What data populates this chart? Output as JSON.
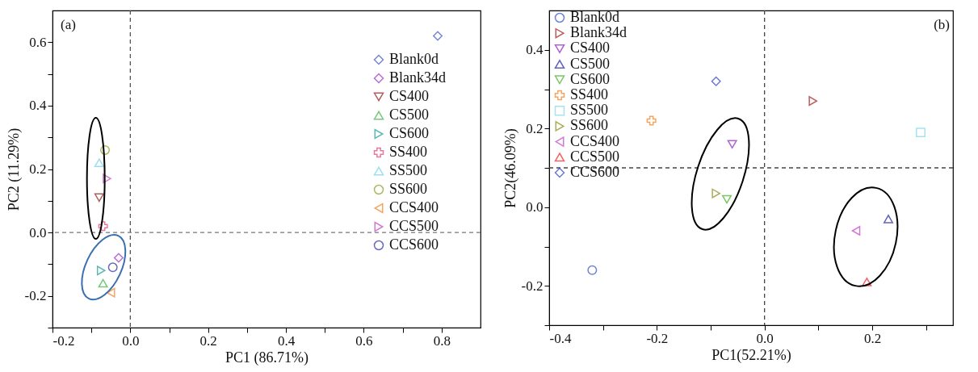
{
  "chart_data": [
    {
      "type": "scatter",
      "xlabel": "PC1 (86.71%)",
      "ylabel": "PC2 (11.29%)",
      "annotations": [
        "(a)"
      ],
      "xlim": [
        -0.2,
        0.9
      ],
      "ylim": [
        -0.3,
        0.7
      ],
      "xticks": [
        -0.2,
        {
          "value": -0.1,
          "label": null
        },
        {
          "value": 0,
          "label": "0.0"
        },
        {
          "value": 0.1,
          "label": null
        },
        0.2,
        {
          "value": 0.3,
          "label": null
        },
        0.4,
        {
          "value": 0.5,
          "label": null
        },
        0.6,
        {
          "value": 0.7,
          "label": null
        },
        0.8
      ],
      "yticks": [
        {
          "value": -0.3,
          "label": null
        },
        -0.2,
        {
          "value": -0.1,
          "label": null
        },
        {
          "value": 0,
          "label": "0.0"
        },
        {
          "value": 0.1,
          "label": null
        },
        0.2,
        {
          "value": 0.3,
          "label": null
        },
        0.4,
        {
          "value": 0.5,
          "label": null
        },
        0.6
      ],
      "grid": false,
      "legend": "top right",
      "ref_lines": [
        {
          "axis": "x",
          "value": 0,
          "color": "#555555",
          "line_style": "dashed"
        },
        {
          "axis": "y",
          "value": 0,
          "color": "#777777",
          "line_style": "dashed"
        }
      ],
      "series": [
        {
          "name": "Blank0d",
          "color": "#3f51c0",
          "marker": "diamond",
          "x": [
            0.79
          ],
          "values": [
            0.62
          ]
        },
        {
          "name": "Blank34d",
          "color": "#9b30c0",
          "marker": "diamond",
          "x": [
            -0.03
          ],
          "values": [
            -0.08
          ]
        },
        {
          "name": "CS400",
          "color": "#8b1a1a",
          "marker": "triangle-down",
          "x": [
            -0.08
          ],
          "values": [
            0.11
          ]
        },
        {
          "name": "CS500",
          "color": "#3cb043",
          "marker": "triangle-up",
          "x": [
            -0.07
          ],
          "values": [
            -0.16
          ]
        },
        {
          "name": "CS600",
          "color": "#1a9a9a",
          "marker": "triangle-right",
          "x": [
            -0.075
          ],
          "values": [
            -0.12
          ]
        },
        {
          "name": "SS400",
          "color": "#e0407a",
          "marker": "cross",
          "x": [
            -0.07
          ],
          "values": [
            0.02
          ]
        },
        {
          "name": "SS500",
          "color": "#70d0f0",
          "marker": "triangle-up",
          "x": [
            -0.08
          ],
          "values": [
            0.22
          ]
        },
        {
          "name": "SS600",
          "color": "#8a9a20",
          "marker": "circle",
          "x": [
            -0.065
          ],
          "values": [
            0.26
          ]
        },
        {
          "name": "CCS400",
          "color": "#f08020",
          "marker": "triangle-left",
          "x": [
            -0.05
          ],
          "values": [
            -0.19
          ]
        },
        {
          "name": "CCS500",
          "color": "#c040c0",
          "marker": "triangle-right",
          "x": [
            -0.06
          ],
          "values": [
            0.17
          ]
        },
        {
          "name": "CCS600",
          "color": "#2a2aa0",
          "marker": "circle",
          "x": [
            -0.045
          ],
          "values": [
            -0.11
          ]
        }
      ]
    },
    {
      "type": "scatter",
      "xlabel": "PC1(52.21%)",
      "ylabel": "PC2(46.09%)",
      "annotations": [
        "(b)"
      ],
      "xlim": [
        -0.4,
        0.35
      ],
      "ylim": [
        -0.3,
        0.5
      ],
      "xticks": [
        -0.4,
        {
          "value": -0.3,
          "label": null
        },
        -0.2,
        {
          "value": -0.1,
          "label": null
        },
        {
          "value": 0,
          "label": "0.0"
        },
        {
          "value": 0.1,
          "label": null
        },
        0.2,
        {
          "value": 0.3,
          "label": null
        }
      ],
      "yticks": [
        {
          "value": -0.3,
          "label": null
        },
        -0.2,
        {
          "value": -0.1,
          "label": null
        },
        {
          "value": 0,
          "label": "0.0"
        },
        {
          "value": 0.1,
          "label": null
        },
        0.2,
        {
          "value": 0.3,
          "label": null
        },
        0.4
      ],
      "grid": false,
      "legend": "top left",
      "ref_lines": [
        {
          "axis": "x",
          "value": 0,
          "color": "#444444",
          "line_style": "dashed"
        },
        {
          "axis": "y",
          "value": 0.1,
          "color": "#444444",
          "line_style": "dashed"
        }
      ],
      "series": [
        {
          "name": "Blank0d",
          "color": "#3050c0",
          "marker": "circle",
          "x": [
            -0.32
          ],
          "values": [
            -0.16
          ]
        },
        {
          "name": "Blank34d",
          "color": "#a01818",
          "marker": "triangle-right",
          "x": [
            0.09
          ],
          "values": [
            0.27
          ]
        },
        {
          "name": "CS400",
          "color": "#9020c0",
          "marker": "triangle-down",
          "x": [
            -0.06
          ],
          "values": [
            0.16
          ]
        },
        {
          "name": "CS500",
          "color": "#2020a0",
          "marker": "triangle-up",
          "x": [
            0.23
          ],
          "values": [
            -0.03
          ]
        },
        {
          "name": "CS600",
          "color": "#40b020",
          "marker": "triangle-down",
          "x": [
            -0.07
          ],
          "values": [
            0.02
          ]
        },
        {
          "name": "SS400",
          "color": "#f08020",
          "marker": "cross",
          "x": [
            -0.21
          ],
          "values": [
            0.22
          ]
        },
        {
          "name": "SS500",
          "color": "#80d8e8",
          "marker": "square",
          "x": [
            0.29
          ],
          "values": [
            0.19
          ]
        },
        {
          "name": "SS600",
          "color": "#8a8a10",
          "marker": "triangle-right",
          "x": [
            -0.09
          ],
          "values": [
            0.035
          ]
        },
        {
          "name": "CCS400",
          "color": "#c040c0",
          "marker": "triangle-left",
          "x": [
            0.17
          ],
          "values": [
            -0.06
          ]
        },
        {
          "name": "CCS500",
          "color": "#f02020",
          "marker": "triangle-up",
          "x": [
            0.19
          ],
          "values": [
            -0.19
          ]
        },
        {
          "name": "CCS600",
          "color": "#3040c0",
          "marker": "diamond",
          "x": [
            -0.09
          ],
          "values": [
            0.32
          ]
        }
      ]
    }
  ]
}
